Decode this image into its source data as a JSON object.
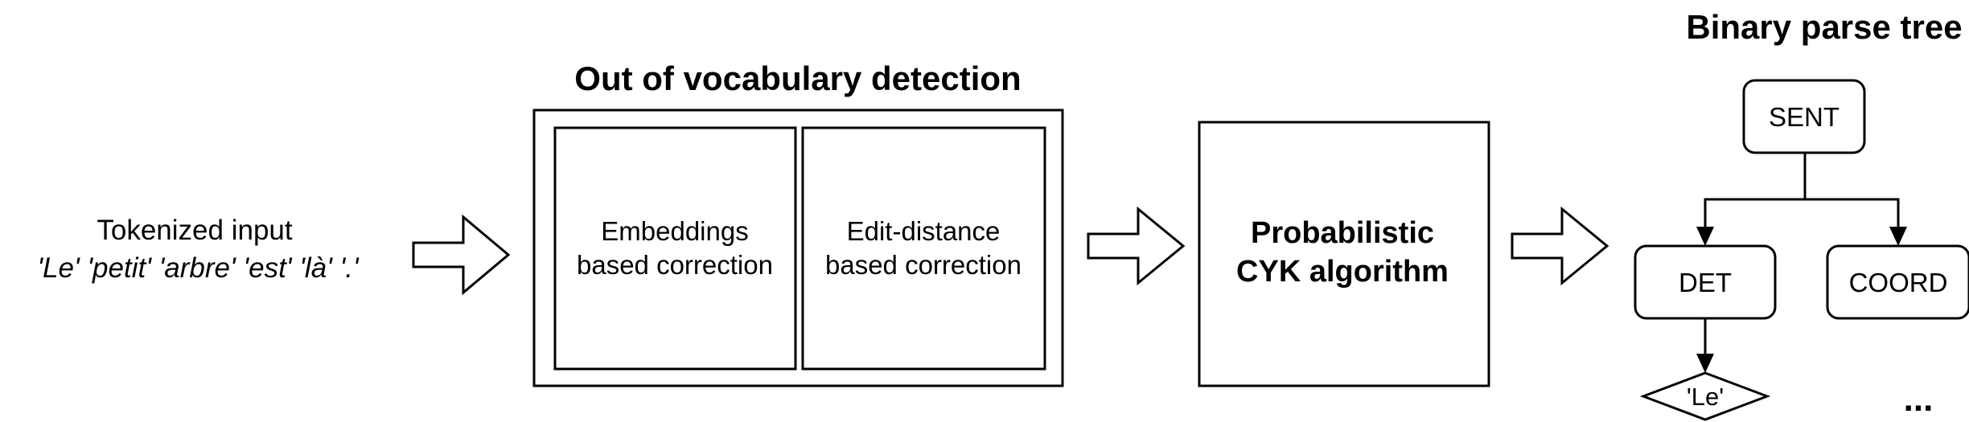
{
  "input": {
    "label": "Tokenized input",
    "tokens": "'Le' 'petit' 'arbre' 'est' 'là' '.'"
  },
  "oov": {
    "title": "Out of vocabulary detection",
    "embeddings_line1": "Embeddings",
    "embeddings_line2": "based correction",
    "edit_line1": "Edit-distance",
    "edit_line2": "based correction"
  },
  "cyk": {
    "line1": "Probabilistic",
    "line2": "CYK algorithm"
  },
  "tree": {
    "title": "Binary parse tree",
    "root": "SENT",
    "left_child": "DET",
    "right_child": "COORD",
    "leaf": "'Le'",
    "ellipsis": "..."
  }
}
